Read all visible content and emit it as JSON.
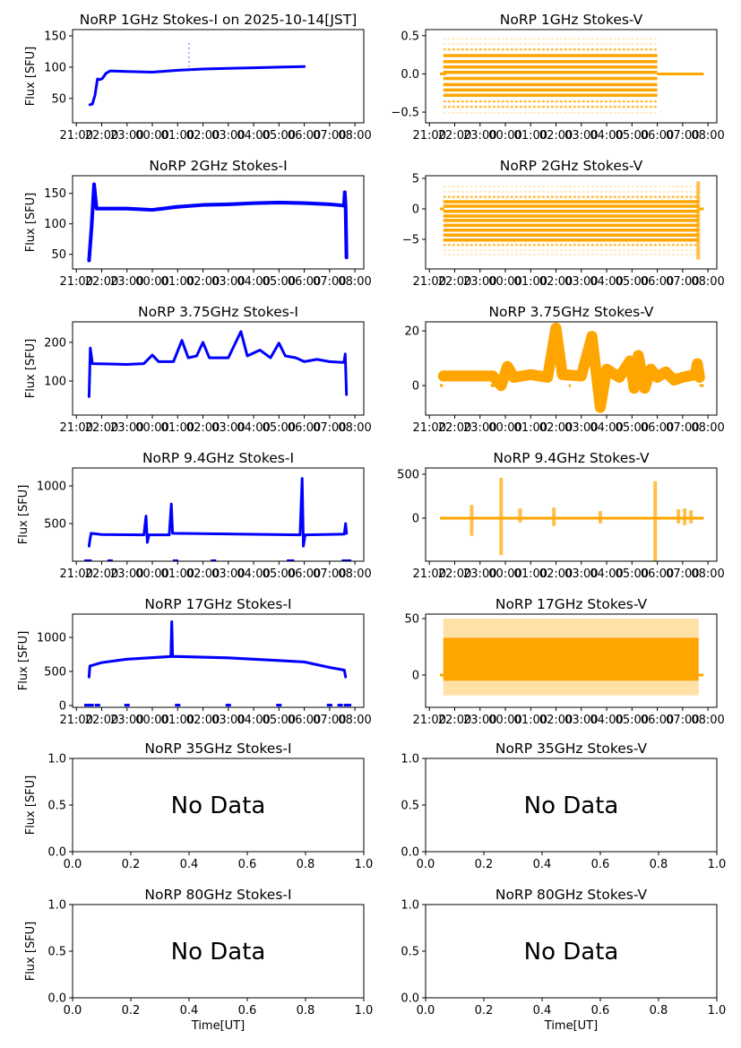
{
  "chart_data": [
    {
      "type": "scatter",
      "kind": "I",
      "title": "NoRP 1GHz Stokes-I on 2025-10-14[JST]",
      "ylabel": "Flux [SFU]",
      "xlabel": "",
      "color": "#0000ff",
      "xaxis": "time",
      "xlim": [
        "20:51",
        "08:21"
      ],
      "xticks": [
        "21:00",
        "22:00",
        "23:00",
        "00:00",
        "01:00",
        "02:00",
        "03:00",
        "04:00",
        "05:00",
        "06:00",
        "07:00",
        "08:00"
      ],
      "ylim": [
        11,
        160
      ],
      "yticks": [
        50,
        100,
        150
      ],
      "yticklabels": [
        "50",
        "100",
        "150"
      ],
      "points": [
        [
          "21:32",
          40
        ],
        [
          "21:38",
          41
        ],
        [
          "21:44",
          55
        ],
        [
          "21:50",
          81
        ],
        [
          "21:56",
          80
        ],
        [
          "22:02",
          82
        ],
        [
          "22:10",
          90
        ],
        [
          "22:20",
          94
        ],
        [
          "23:00",
          93
        ],
        [
          "00:00",
          92
        ],
        [
          "01:00",
          95
        ],
        [
          "02:00",
          97
        ],
        [
          "03:00",
          98
        ],
        [
          "04:00",
          99
        ],
        [
          "05:00",
          100
        ],
        [
          "06:00",
          101
        ]
      ],
      "noise": 1.5,
      "faint_spikes": [
        [
          "01:27",
          100,
          142
        ]
      ]
    },
    {
      "type": "scatter",
      "kind": "V",
      "title": "NoRP 1GHz Stokes-V",
      "ylabel": "",
      "xlabel": "",
      "color": "#ffa500",
      "xaxis": "time",
      "xlim": [
        "20:51",
        "08:21"
      ],
      "xticks": [
        "21:00",
        "22:00",
        "23:00",
        "00:00",
        "01:00",
        "02:00",
        "03:00",
        "04:00",
        "05:00",
        "06:00",
        "07:00",
        "08:00"
      ],
      "ylim": [
        -0.64,
        0.58
      ],
      "yticks": [
        -0.5,
        0.0,
        0.5
      ],
      "yticklabels": [
        "−0.5",
        "0.0",
        "0.5"
      ],
      "span": [
        "21:33",
        "06:00"
      ],
      "levels_dense": [
        0.24,
        0.16,
        0.09,
        0.02,
        -0.06,
        -0.14,
        -0.21,
        -0.28
      ],
      "levels_medium": [
        0.32,
        -0.36,
        -0.43
      ],
      "levels_sparse": [
        0.39,
        0.46,
        -0.51
      ],
      "flat": [
        [
          "21:25",
          "21:40"
        ],
        [
          "06:00",
          "07:50"
        ]
      ]
    },
    {
      "type": "scatter",
      "kind": "I",
      "title": "NoRP 2GHz Stokes-I",
      "ylabel": "Flux [SFU]",
      "xlabel": "",
      "color": "#0000ff",
      "xaxis": "time",
      "xlim": [
        "20:51",
        "08:21"
      ],
      "xticks": [
        "21:00",
        "22:00",
        "23:00",
        "00:00",
        "01:00",
        "02:00",
        "03:00",
        "04:00",
        "05:00",
        "06:00",
        "07:00",
        "08:00"
      ],
      "ylim": [
        26,
        179
      ],
      "yticks": [
        50,
        100,
        150
      ],
      "yticklabels": [
        "50",
        "100",
        "150"
      ],
      "points": [
        [
          "21:30",
          40
        ],
        [
          "21:36",
          95
        ],
        [
          "21:42",
          165
        ],
        [
          "21:48",
          125
        ],
        [
          "23:00",
          125
        ],
        [
          "00:00",
          123
        ],
        [
          "01:00",
          128
        ],
        [
          "02:00",
          131
        ],
        [
          "03:00",
          132
        ],
        [
          "04:00",
          134
        ],
        [
          "05:00",
          135
        ],
        [
          "06:00",
          134
        ],
        [
          "07:00",
          132
        ],
        [
          "07:34",
          130
        ],
        [
          "07:36",
          152
        ],
        [
          "07:38",
          130
        ],
        [
          "07:40",
          45
        ]
      ],
      "noise": 3
    },
    {
      "type": "scatter",
      "kind": "V",
      "title": "NoRP 2GHz Stokes-V",
      "ylabel": "",
      "xlabel": "",
      "color": "#ffa500",
      "xaxis": "time",
      "xlim": [
        "20:51",
        "08:21"
      ],
      "xticks": [
        "21:00",
        "22:00",
        "23:00",
        "00:00",
        "01:00",
        "02:00",
        "03:00",
        "04:00",
        "05:00",
        "06:00",
        "07:00",
        "08:00"
      ],
      "ylim": [
        -9.85,
        5.44
      ],
      "yticks": [
        -5,
        0,
        5
      ],
      "yticklabels": [
        "−5",
        "0",
        "5"
      ],
      "span": [
        "21:33",
        "07:38"
      ],
      "levels_dense": [
        1.18,
        0.44,
        -0.4,
        -1.18,
        -1.9,
        -2.7,
        -3.5,
        -4.3,
        -5.1
      ],
      "levels_medium": [
        1.96,
        -5.9
      ],
      "levels_sparse": [
        2.8,
        3.7,
        -6.8,
        -7.5
      ],
      "flat": [
        [
          "21:25",
          "21:35"
        ],
        [
          "07:38",
          "07:50"
        ]
      ],
      "spikes": [
        [
          "07:37",
          -8.3,
          4.5
        ]
      ]
    },
    {
      "type": "scatter",
      "kind": "I",
      "title": "NoRP 3.75GHz Stokes-I",
      "ylabel": "Flux [SFU]",
      "xlabel": "",
      "color": "#0000ff",
      "xaxis": "time",
      "xlim": [
        "20:51",
        "08:21"
      ],
      "xticks": [
        "21:00",
        "22:00",
        "23:00",
        "00:00",
        "01:00",
        "02:00",
        "03:00",
        "04:00",
        "05:00",
        "06:00",
        "07:00",
        "08:00"
      ],
      "ylim": [
        12,
        253
      ],
      "yticks": [
        100,
        200
      ],
      "yticklabels": [
        "100",
        "200"
      ],
      "points": [
        [
          "21:30",
          60
        ],
        [
          "21:33",
          185
        ],
        [
          "21:38",
          145
        ],
        [
          "23:00",
          143
        ],
        [
          "23:40",
          145
        ],
        [
          "00:00",
          167
        ],
        [
          "00:15",
          150
        ],
        [
          "00:50",
          150
        ],
        [
          "01:10",
          205
        ],
        [
          "01:25",
          160
        ],
        [
          "01:45",
          165
        ],
        [
          "02:00",
          200
        ],
        [
          "02:15",
          160
        ],
        [
          "03:00",
          160
        ],
        [
          "03:30",
          228
        ],
        [
          "03:45",
          165
        ],
        [
          "04:15",
          180
        ],
        [
          "04:40",
          160
        ],
        [
          "05:00",
          198
        ],
        [
          "05:15",
          165
        ],
        [
          "05:40",
          160
        ],
        [
          "06:00",
          150
        ],
        [
          "06:30",
          156
        ],
        [
          "07:00",
          150
        ],
        [
          "07:34",
          148
        ],
        [
          "07:37",
          170
        ],
        [
          "07:40",
          65
        ]
      ],
      "noise": 3
    },
    {
      "type": "scatter",
      "kind": "Vline",
      "title": "NoRP 3.75GHz Stokes-V",
      "ylabel": "",
      "xlabel": "",
      "color": "#ffa500",
      "xaxis": "time",
      "xlim": [
        "20:51",
        "08:21"
      ],
      "xticks": [
        "21:00",
        "22:00",
        "23:00",
        "00:00",
        "01:00",
        "02:00",
        "03:00",
        "04:00",
        "05:00",
        "06:00",
        "07:00",
        "08:00"
      ],
      "ylim": [
        -10.8,
        23.3
      ],
      "yticks": [
        0,
        20
      ],
      "yticklabels": [
        "0",
        "20"
      ],
      "points": [
        [
          "21:33",
          3.5
        ],
        [
          "23:30",
          3.5
        ],
        [
          "23:50",
          0
        ],
        [
          "00:05",
          7
        ],
        [
          "00:20",
          3
        ],
        [
          "01:00",
          4
        ],
        [
          "01:40",
          3
        ],
        [
          "02:00",
          21
        ],
        [
          "02:15",
          4
        ],
        [
          "03:00",
          3.5
        ],
        [
          "03:25",
          18
        ],
        [
          "03:45",
          -8
        ],
        [
          "04:00",
          6
        ],
        [
          "04:30",
          3
        ],
        [
          "04:55",
          9
        ],
        [
          "05:05",
          -1
        ],
        [
          "05:15",
          11
        ],
        [
          "05:30",
          -1
        ],
        [
          "05:45",
          6
        ],
        [
          "06:00",
          3
        ],
        [
          "06:20",
          5
        ],
        [
          "06:40",
          2
        ],
        [
          "07:00",
          3
        ],
        [
          "07:30",
          4
        ],
        [
          "07:35",
          8
        ],
        [
          "07:40",
          3
        ]
      ],
      "noise": 2,
      "flat": [
        [
          "21:25",
          "21:32"
        ],
        [
          "23:25",
          "23:35"
        ],
        [
          "02:30",
          "02:35"
        ],
        [
          "07:40",
          "07:50"
        ]
      ]
    },
    {
      "type": "scatter",
      "kind": "I",
      "title": "NoRP 9.4GHz Stokes-I",
      "ylabel": "Flux [SFU]",
      "xlabel": "",
      "color": "#0000ff",
      "xaxis": "time",
      "xlim": [
        "20:51",
        "08:21"
      ],
      "xticks": [
        "21:00",
        "22:00",
        "23:00",
        "00:00",
        "01:00",
        "02:00",
        "03:00",
        "04:00",
        "05:00",
        "06:00",
        "07:00",
        "08:00"
      ],
      "ylim": [
        0,
        1238
      ],
      "yticks": [
        500,
        1000
      ],
      "yticklabels": [
        "500",
        "1000"
      ],
      "points": [
        [
          "21:30",
          200
        ],
        [
          "21:32",
          280
        ],
        [
          "21:35",
          370
        ],
        [
          "22:00",
          355
        ],
        [
          "23:40",
          350
        ],
        [
          "23:45",
          600
        ],
        [
          "23:48",
          250
        ],
        [
          "23:52",
          350
        ],
        [
          "00:40",
          350
        ],
        [
          "00:45",
          760
        ],
        [
          "00:48",
          370
        ],
        [
          "05:50",
          350
        ],
        [
          "05:55",
          1100
        ],
        [
          "05:58",
          200
        ],
        [
          "06:02",
          350
        ],
        [
          "07:35",
          360
        ],
        [
          "07:38",
          500
        ],
        [
          "07:40",
          370
        ]
      ],
      "noise": 15,
      "zero_points": [
        "21:25",
        "21:30",
        "22:20",
        "00:55",
        "02:25",
        "05:25",
        "05:30",
        "07:35",
        "07:45"
      ]
    },
    {
      "type": "scatter",
      "kind": "Vspikes",
      "title": "NoRP 9.4GHz Stokes-V",
      "ylabel": "",
      "xlabel": "",
      "color": "#ffa500",
      "xaxis": "time",
      "xlim": [
        "20:51",
        "08:21"
      ],
      "xticks": [
        "21:00",
        "22:00",
        "23:00",
        "00:00",
        "01:00",
        "02:00",
        "03:00",
        "04:00",
        "05:00",
        "06:00",
        "07:00",
        "08:00"
      ],
      "ylim": [
        -490,
        571
      ],
      "yticks": [
        0,
        500
      ],
      "yticklabels": [
        "0",
        "500"
      ],
      "flat": [
        [
          "21:25",
          "07:50"
        ]
      ],
      "spikes": [
        [
          "22:40",
          -200,
          150
        ],
        [
          "23:50",
          -420,
          460
        ],
        [
          "00:35",
          -50,
          110
        ],
        [
          "01:55",
          -90,
          120
        ],
        [
          "03:45",
          -60,
          80
        ],
        [
          "05:55",
          -490,
          420
        ],
        [
          "06:50",
          -60,
          100
        ],
        [
          "07:05",
          -80,
          110
        ],
        [
          "07:20",
          -60,
          90
        ]
      ]
    },
    {
      "type": "scatter",
      "kind": "I",
      "title": "NoRP 17GHz Stokes-I",
      "ylabel": "Flux [SFU]",
      "xlabel": "",
      "color": "#0000ff",
      "xaxis": "time",
      "xlim": [
        "20:51",
        "08:21"
      ],
      "xticks": [
        "21:00",
        "22:00",
        "23:00",
        "00:00",
        "01:00",
        "02:00",
        "03:00",
        "04:00",
        "05:00",
        "06:00",
        "07:00",
        "08:00"
      ],
      "ylim": [
        -26,
        1342
      ],
      "yticks": [
        0,
        500,
        1000
      ],
      "yticklabels": [
        "0",
        "500",
        "1000"
      ],
      "points": [
        [
          "21:30",
          420
        ],
        [
          "21:32",
          580
        ],
        [
          "22:00",
          630
        ],
        [
          "23:00",
          680
        ],
        [
          "00:44",
          720
        ],
        [
          "00:46",
          1230
        ],
        [
          "00:48",
          720
        ],
        [
          "01:00",
          720
        ],
        [
          "03:00",
          700
        ],
        [
          "05:00",
          660
        ],
        [
          "06:00",
          640
        ],
        [
          "07:00",
          560
        ],
        [
          "07:35",
          520
        ],
        [
          "07:38",
          420
        ]
      ],
      "noise": 20,
      "zero_points": [
        "21:25",
        "21:35",
        "21:50",
        "23:00",
        "01:00",
        "03:00",
        "05:00",
        "07:00",
        "07:25",
        "07:40",
        "07:45"
      ]
    },
    {
      "type": "scatter",
      "kind": "Venvelope",
      "title": "NoRP 17GHz Stokes-V",
      "ylabel": "",
      "xlabel": "",
      "color": "#ffa500",
      "xaxis": "time",
      "xlim": [
        "20:51",
        "08:21"
      ],
      "xticks": [
        "21:00",
        "22:00",
        "23:00",
        "00:00",
        "01:00",
        "02:00",
        "03:00",
        "04:00",
        "05:00",
        "06:00",
        "07:00",
        "08:00"
      ],
      "ylim": [
        -28.6,
        54
      ],
      "yticks": [
        0,
        50
      ],
      "yticklabels": [
        "0",
        "50"
      ],
      "span": [
        "21:33",
        "07:38"
      ],
      "envelope_dense": [
        -5,
        33
      ],
      "envelope_sparse": [
        -18,
        50
      ],
      "flat": [
        [
          "21:25",
          "21:35"
        ],
        [
          "07:38",
          "07:50"
        ]
      ]
    },
    {
      "type": "scatter",
      "kind": "empty",
      "title": "NoRP 35GHz Stokes-I",
      "ylabel": "Flux [SFU]",
      "xlabel": "",
      "xaxis": "linear",
      "xlim": [
        0,
        1
      ],
      "xticks": [
        0,
        0.2,
        0.4,
        0.6,
        0.8,
        1.0
      ],
      "xticklabels": [
        "0.0",
        "0.2",
        "0.4",
        "0.6",
        "0.8",
        "1.0"
      ],
      "ylim": [
        0,
        1
      ],
      "yticks": [
        0,
        0.5,
        1.0
      ],
      "yticklabels": [
        "0.0",
        "0.5",
        "1.0"
      ],
      "annotation": "No Data"
    },
    {
      "type": "scatter",
      "kind": "empty",
      "title": "NoRP 35GHz Stokes-V",
      "ylabel": "",
      "xlabel": "",
      "xaxis": "linear",
      "xlim": [
        0,
        1
      ],
      "xticks": [
        0,
        0.2,
        0.4,
        0.6,
        0.8,
        1.0
      ],
      "xticklabels": [
        "0.0",
        "0.2",
        "0.4",
        "0.6",
        "0.8",
        "1.0"
      ],
      "ylim": [
        0,
        1
      ],
      "yticks": [
        0,
        0.5,
        1.0
      ],
      "yticklabels": [
        "0.0",
        "0.5",
        "1.0"
      ],
      "annotation": "No Data"
    },
    {
      "type": "scatter",
      "kind": "empty",
      "title": "NoRP 80GHz Stokes-I",
      "ylabel": "Flux [SFU]",
      "xlabel": "Time[UT]",
      "xaxis": "linear",
      "xlim": [
        0,
        1
      ],
      "xticks": [
        0,
        0.2,
        0.4,
        0.6,
        0.8,
        1.0
      ],
      "xticklabels": [
        "0.0",
        "0.2",
        "0.4",
        "0.6",
        "0.8",
        "1.0"
      ],
      "ylim": [
        0,
        1
      ],
      "yticks": [
        0,
        0.5,
        1.0
      ],
      "yticklabels": [
        "0.0",
        "0.5",
        "1.0"
      ],
      "annotation": "No Data"
    },
    {
      "type": "scatter",
      "kind": "empty",
      "title": "NoRP 80GHz Stokes-V",
      "ylabel": "",
      "xlabel": "Time[UT]",
      "xaxis": "linear",
      "xlim": [
        0,
        1
      ],
      "xticks": [
        0,
        0.2,
        0.4,
        0.6,
        0.8,
        1.0
      ],
      "xticklabels": [
        "0.0",
        "0.2",
        "0.4",
        "0.6",
        "0.8",
        "1.0"
      ],
      "ylim": [
        0,
        1
      ],
      "yticks": [
        0,
        0.5,
        1.0
      ],
      "yticklabels": [
        "0.0",
        "0.5",
        "1.0"
      ],
      "annotation": "No Data"
    }
  ]
}
